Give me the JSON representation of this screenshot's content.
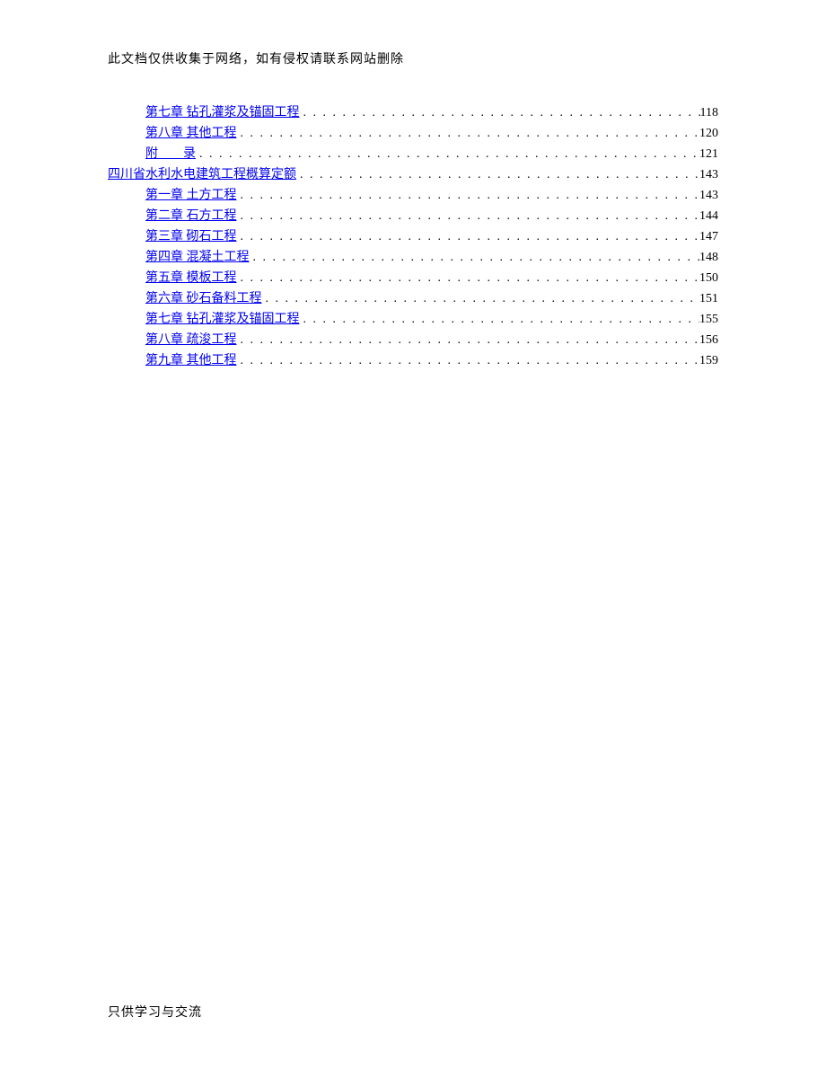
{
  "header": {
    "text": "此文档仅供收集于网络，如有侵权请联系网站删除"
  },
  "footer": {
    "text": "只供学习与交流"
  },
  "toc": {
    "entries": [
      {
        "label": "第七章  钻孔灌浆及锚固工程",
        "page": "118",
        "indent": 1
      },
      {
        "label": "第八章  其他工程",
        "page": "120",
        "indent": 1
      },
      {
        "label": "附　　录",
        "page": "121",
        "indent": 1
      },
      {
        "label": "四川省水利水电建筑工程概算定额",
        "page": "143",
        "indent": 0
      },
      {
        "label": "第一章  土方工程",
        "page": "143",
        "indent": 1
      },
      {
        "label": "第二章  石方工程",
        "page": "144",
        "indent": 1
      },
      {
        "label": "第三章  砌石工程",
        "page": "147",
        "indent": 1
      },
      {
        "label": "第四章  混凝土工程",
        "page": "148",
        "indent": 1
      },
      {
        "label": "第五章  模板工程",
        "page": "150",
        "indent": 1
      },
      {
        "label": "第六章  砂石备料工程",
        "page": "151",
        "indent": 1
      },
      {
        "label": "第七章  钻孔灌浆及锚固工程",
        "page": "155",
        "indent": 1
      },
      {
        "label": "第八章  疏浚工程",
        "page": "156",
        "indent": 1
      },
      {
        "label": "第九章  其他工程",
        "page": "159",
        "indent": 1
      }
    ],
    "link_color": "#0000ee",
    "text_color": "#000000",
    "background_color": "#ffffff",
    "font_size": 14,
    "line_height": 22
  }
}
